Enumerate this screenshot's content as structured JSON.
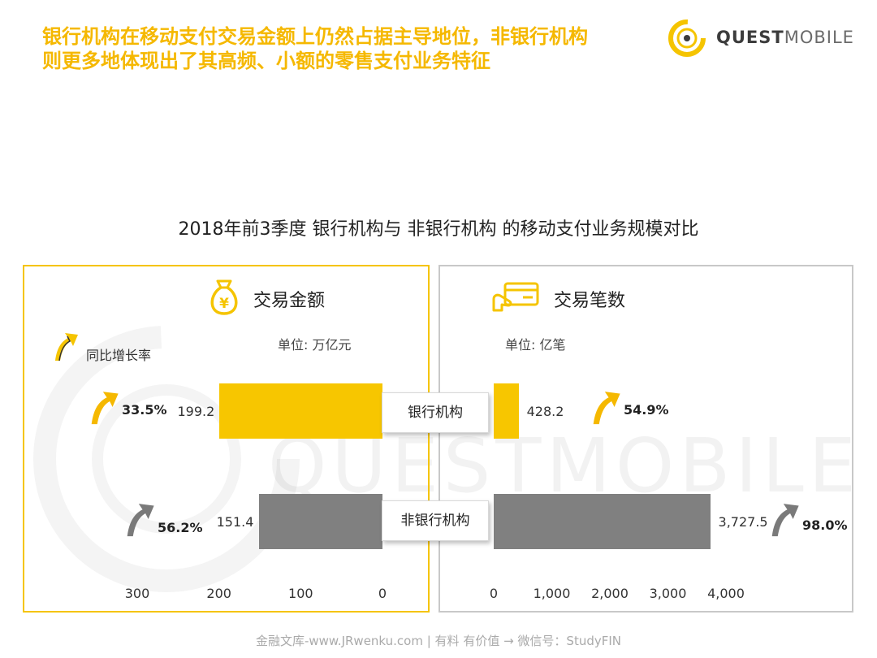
{
  "headline": {
    "line1": "银行机构在移动支付交易金额上仍然占据主导地位，非银行机构",
    "line2": "则更多地体现出了其高频、小额的零售支付业务特征"
  },
  "logo": {
    "bold": "QUEST",
    "light": "MOBILE"
  },
  "watermark": "QUESTMOBILE",
  "chart_title": "2018年前3季度 银行机构与 非银行机构 的移动支付业务规模对比",
  "legend": {
    "growth_label": "同比增长率",
    "growth_icon": "arrow-up-icon"
  },
  "categories": [
    "银行机构",
    "非银行机构"
  ],
  "colors": {
    "bank": "#f7c600",
    "nonbank": "#808080",
    "accent": "#f5b800"
  },
  "chart_data": [
    {
      "type": "bar",
      "orientation": "horizontal",
      "direction": "right-to-left",
      "title": "交易金额",
      "icon": "money-bag-icon",
      "unit": "单位: 万亿元",
      "categories": [
        "银行机构",
        "非银行机构"
      ],
      "values": [
        199.2,
        151.4
      ],
      "value_labels": [
        "199.2",
        "151.4"
      ],
      "growth": [
        "33.5%",
        "56.2%"
      ],
      "xlim": [
        0,
        300
      ],
      "ticks": [
        300,
        200,
        100,
        0
      ],
      "tick_labels": [
        "300",
        "200",
        "100",
        "0"
      ]
    },
    {
      "type": "bar",
      "orientation": "horizontal",
      "direction": "left-to-right",
      "title": "交易笔数",
      "icon": "card-payment-icon",
      "unit": "单位: 亿笔",
      "categories": [
        "银行机构",
        "非银行机构"
      ],
      "values": [
        428.2,
        3727.5
      ],
      "value_labels": [
        "428.2",
        "3,727.5"
      ],
      "growth": [
        "54.9%",
        "98.0%"
      ],
      "xlim": [
        0,
        4000
      ],
      "ticks": [
        0,
        1000,
        2000,
        3000,
        4000
      ],
      "tick_labels": [
        "0",
        "1,000",
        "2,000",
        "3,000",
        "4,000"
      ]
    }
  ],
  "footer": "金融文库-www.JRwenku.com | 有料  有价值 → 微信号：StudyFIN"
}
